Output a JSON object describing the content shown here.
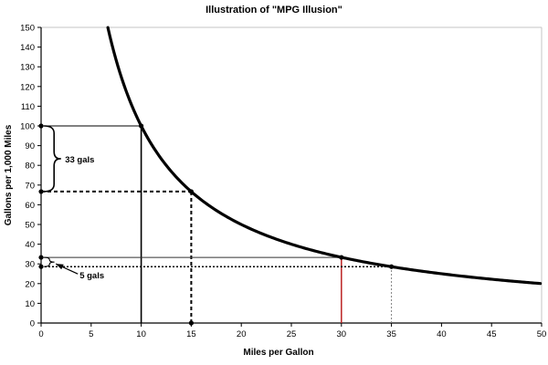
{
  "title": "Illustration of \"MPG Illusion\"",
  "colors": {
    "curve": "#000000",
    "highlight_red": "#bb2222",
    "guide_gray": "#808080",
    "thin_dark": "#333333",
    "plot_border": "#c6c6c6",
    "axis": "#000000",
    "background": "#ffffff"
  },
  "chart_data": {
    "type": "line",
    "title": "Illustration of \"MPG Illusion\"",
    "xlabel": "Miles per Gallon",
    "ylabel": "Gallons per 1,000 Miles",
    "xlim": [
      0,
      50
    ],
    "ylim": [
      0,
      150
    ],
    "x_ticks": [
      0,
      5,
      10,
      15,
      20,
      25,
      30,
      35,
      40,
      45,
      50
    ],
    "y_ticks": [
      0,
      10,
      20,
      30,
      40,
      50,
      60,
      70,
      80,
      90,
      100,
      110,
      120,
      130,
      140,
      150
    ],
    "grid": false,
    "legend": "none",
    "curve": {
      "name": "gallons-per-1000-miles-curve",
      "formula": "y = 1000 / x",
      "x_start": 6.67,
      "x_end": 50,
      "color": "#000000",
      "width": 3.2
    },
    "highlight_points": [
      {
        "x": 10,
        "y": 100
      },
      {
        "x": 15,
        "y": 66.7
      },
      {
        "x": 30,
        "y": 33.3
      },
      {
        "x": 35,
        "y": 28.6
      },
      {
        "x": 0,
        "y": 100
      },
      {
        "x": 0,
        "y": 66.7
      },
      {
        "x": 0,
        "y": 33.3
      },
      {
        "x": 0,
        "y": 28.6
      },
      {
        "x": 15,
        "y": 0
      }
    ],
    "guide_lines": [
      {
        "name": "hline-100-mpg10",
        "from": [
          0,
          100
        ],
        "to": [
          10,
          100
        ],
        "style": "solid",
        "color": "#000000",
        "width": 1
      },
      {
        "name": "vline-mpg10",
        "from": [
          10,
          0
        ],
        "to": [
          10,
          100
        ],
        "style": "solid",
        "color": "#000000",
        "width": 1.6
      },
      {
        "name": "hline-67-mpg15",
        "from": [
          0,
          66.7
        ],
        "to": [
          15,
          66.7
        ],
        "style": "dashed",
        "color": "#000000",
        "width": 2
      },
      {
        "name": "vline-mpg15",
        "from": [
          15,
          0
        ],
        "to": [
          15,
          66.7
        ],
        "style": "dashed",
        "color": "#000000",
        "width": 2
      },
      {
        "name": "hline-33-mpg30",
        "from": [
          0,
          33.3
        ],
        "to": [
          30,
          33.3
        ],
        "style": "solid",
        "color": "#333333",
        "width": 1
      },
      {
        "name": "vline-mpg30",
        "from": [
          30,
          0
        ],
        "to": [
          30,
          33.3
        ],
        "style": "solid",
        "color": "#bb2222",
        "width": 1.5
      },
      {
        "name": "hline-29-mpg35",
        "from": [
          0,
          28.6
        ],
        "to": [
          35,
          28.6
        ],
        "style": "dotted",
        "color": "#000000",
        "width": 1.5
      },
      {
        "name": "vline-mpg35",
        "from": [
          35,
          0
        ],
        "to": [
          35,
          28.6
        ],
        "style": "dotted",
        "color": "#808080",
        "width": 1
      }
    ],
    "annotations": [
      {
        "type": "brace",
        "label": "33 gals",
        "x": 0.2,
        "y_from": 66.7,
        "y_to": 100,
        "arrow": false,
        "label_offset": [
          5,
          4
        ]
      },
      {
        "type": "brace",
        "label": "5 gals",
        "x": 0.2,
        "y_from": 28.6,
        "y_to": 33.3,
        "arrow": true,
        "label_offset": [
          28,
          18
        ]
      }
    ]
  }
}
